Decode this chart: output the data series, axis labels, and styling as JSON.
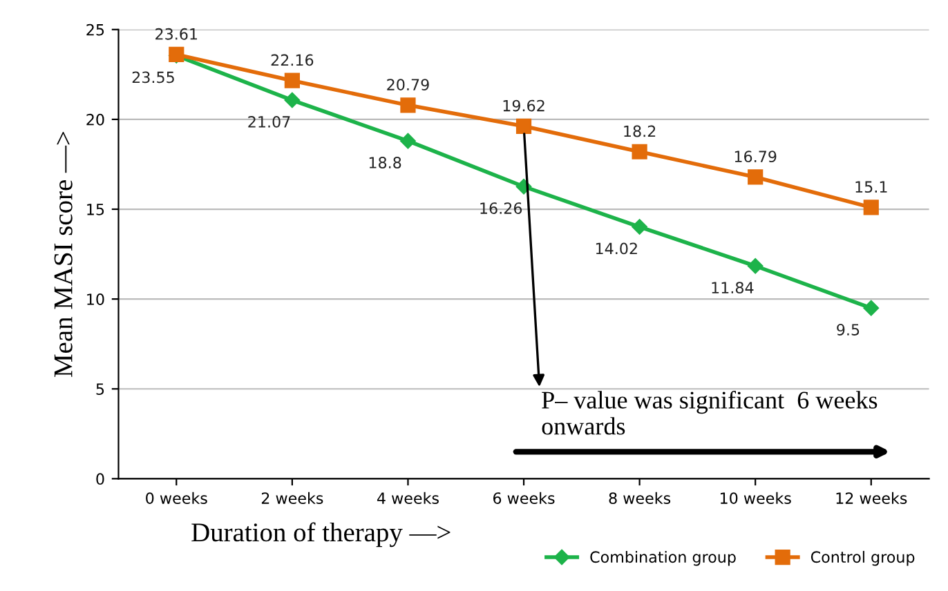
{
  "chart_data": {
    "type": "line",
    "xlabel": "Duration of therapy —>",
    "ylabel": "Mean MASI score —>",
    "categories": [
      "0 weeks",
      "2 weeks",
      "4 weeks",
      "6 weeks",
      "8 weeks",
      "10 weeks",
      "12 weeks"
    ],
    "series": [
      {
        "name": "Combination group",
        "color": "#1db34a",
        "marker": "diamond",
        "values": [
          23.55,
          21.07,
          18.8,
          16.26,
          14.02,
          11.84,
          9.5
        ]
      },
      {
        "name": "Control group",
        "color": "#e36c0a",
        "marker": "square",
        "values": [
          23.61,
          22.16,
          20.79,
          19.62,
          18.2,
          16.79,
          15.1
        ]
      }
    ],
    "ylim": [
      0,
      25
    ],
    "yticks": [
      0,
      5,
      10,
      15,
      20,
      25
    ],
    "grid": "y",
    "legend": "bottom right",
    "data_labels": true,
    "line_style": "solid",
    "annotations": [
      {
        "text": "P– value was significant  6 weeks onwards",
        "x": "6 weeks",
        "y": 19.62
      }
    ]
  }
}
